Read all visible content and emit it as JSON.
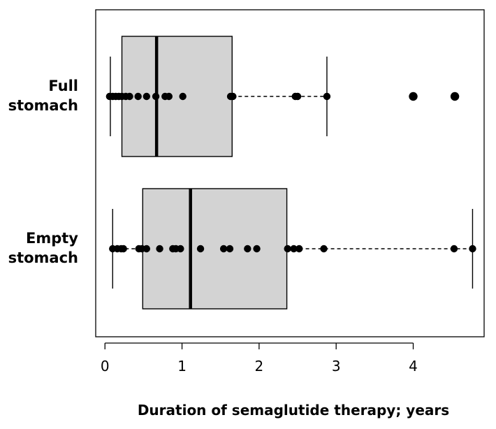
{
  "chart_data": {
    "type": "box",
    "orientation": "horizontal",
    "title": "",
    "xlabel": "Duration of semaglutide therapy; years",
    "ylabel": "",
    "xlim": [
      -0.12,
      4.92
    ],
    "xticks": [
      0,
      1,
      2,
      3,
      4
    ],
    "grid": false,
    "legend": "none",
    "colors": {
      "box_fill": "#d3d3d3",
      "stroke": "#000000",
      "point": "#000000"
    },
    "groups": [
      {
        "label_lines": [
          "Full",
          "stomach"
        ],
        "whisker_low": 0.07,
        "q1": 0.22,
        "median": 0.67,
        "q3": 1.65,
        "whisker_high": 2.88,
        "outliers": [
          4.0,
          4.54
        ],
        "points": [
          0.06,
          0.1,
          0.14,
          0.18,
          0.22,
          0.27,
          0.32,
          0.43,
          0.54,
          0.66,
          0.78,
          0.83,
          1.01,
          1.63,
          1.66,
          2.47,
          2.5,
          2.88
        ]
      },
      {
        "label_lines": [
          "Empty",
          "stomach"
        ],
        "whisker_low": 0.1,
        "q1": 0.49,
        "median": 1.11,
        "q3": 2.36,
        "whisker_high": 4.77,
        "outliers": [],
        "points": [
          0.1,
          0.16,
          0.21,
          0.24,
          0.44,
          0.48,
          0.54,
          0.71,
          0.88,
          0.92,
          0.98,
          1.24,
          1.54,
          1.62,
          1.85,
          1.97,
          2.37,
          2.45,
          2.52,
          2.84,
          4.53,
          4.77
        ]
      }
    ]
  }
}
